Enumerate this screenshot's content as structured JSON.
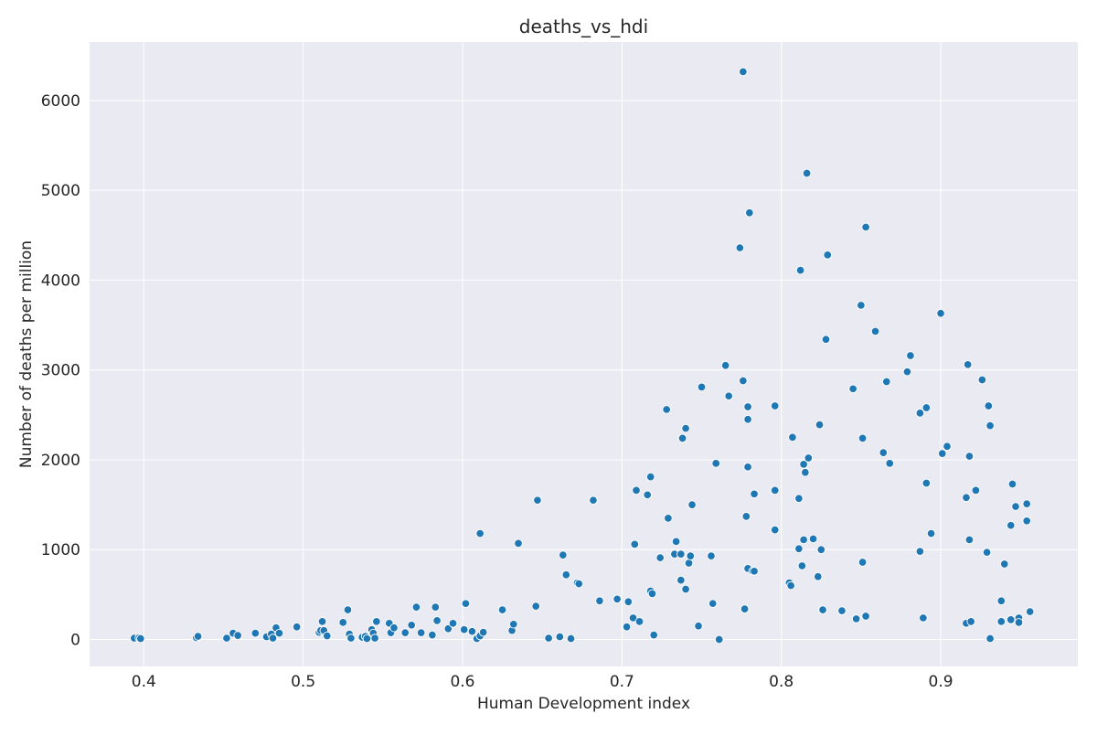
{
  "chart_data": {
    "type": "scatter",
    "title": "deaths_vs_hdi",
    "xlabel": "Human Development index",
    "ylabel": "Number of deaths per million",
    "xlim": [
      0.366,
      0.986
    ],
    "ylim": [
      -300,
      6650
    ],
    "xticks": [
      0.4,
      0.5,
      0.6,
      0.7,
      0.8,
      0.9
    ],
    "xtick_labels": [
      "0.4",
      "0.5",
      "0.6",
      "0.7",
      "0.8",
      "0.9"
    ],
    "yticks": [
      0,
      1000,
      2000,
      3000,
      4000,
      5000,
      6000
    ],
    "ytick_labels": [
      "0",
      "1000",
      "2000",
      "3000",
      "4000",
      "5000",
      "6000"
    ],
    "grid": true,
    "background": "#eaeaf2",
    "point_color": "#1f77b4",
    "series": [
      {
        "points": [
          [
            0.394,
            15
          ],
          [
            0.397,
            20
          ],
          [
            0.398,
            10
          ],
          [
            0.433,
            20
          ],
          [
            0.434,
            35
          ],
          [
            0.452,
            15
          ],
          [
            0.456,
            70
          ],
          [
            0.459,
            45
          ],
          [
            0.47,
            70
          ],
          [
            0.477,
            30
          ],
          [
            0.48,
            60
          ],
          [
            0.481,
            15
          ],
          [
            0.483,
            130
          ],
          [
            0.485,
            70
          ],
          [
            0.496,
            140
          ],
          [
            0.51,
            80
          ],
          [
            0.511,
            100
          ],
          [
            0.512,
            200
          ],
          [
            0.513,
            100
          ],
          [
            0.515,
            40
          ],
          [
            0.525,
            190
          ],
          [
            0.528,
            330
          ],
          [
            0.529,
            60
          ],
          [
            0.53,
            15
          ],
          [
            0.537,
            25
          ],
          [
            0.539,
            35
          ],
          [
            0.54,
            10
          ],
          [
            0.543,
            110
          ],
          [
            0.544,
            70
          ],
          [
            0.545,
            15
          ],
          [
            0.546,
            200
          ],
          [
            0.554,
            180
          ],
          [
            0.555,
            75
          ],
          [
            0.557,
            130
          ],
          [
            0.564,
            75
          ],
          [
            0.568,
            160
          ],
          [
            0.571,
            360
          ],
          [
            0.574,
            75
          ],
          [
            0.581,
            50
          ],
          [
            0.583,
            360
          ],
          [
            0.584,
            210
          ],
          [
            0.591,
            120
          ],
          [
            0.594,
            180
          ],
          [
            0.601,
            110
          ],
          [
            0.602,
            400
          ],
          [
            0.606,
            90
          ],
          [
            0.609,
            10
          ],
          [
            0.611,
            40
          ],
          [
            0.611,
            1180
          ],
          [
            0.613,
            80
          ],
          [
            0.625,
            330
          ],
          [
            0.631,
            100
          ],
          [
            0.632,
            170
          ],
          [
            0.635,
            1070
          ],
          [
            0.646,
            370
          ],
          [
            0.647,
            1550
          ],
          [
            0.654,
            15
          ],
          [
            0.661,
            30
          ],
          [
            0.663,
            940
          ],
          [
            0.665,
            720
          ],
          [
            0.668,
            10
          ],
          [
            0.672,
            630
          ],
          [
            0.673,
            620
          ],
          [
            0.682,
            1550
          ],
          [
            0.686,
            430
          ],
          [
            0.697,
            450
          ],
          [
            0.703,
            140
          ],
          [
            0.704,
            420
          ],
          [
            0.707,
            240
          ],
          [
            0.708,
            1060
          ],
          [
            0.709,
            1660
          ],
          [
            0.711,
            200
          ],
          [
            0.716,
            1610
          ],
          [
            0.718,
            1810
          ],
          [
            0.718,
            540
          ],
          [
            0.719,
            510
          ],
          [
            0.72,
            50
          ],
          [
            0.724,
            910
          ],
          [
            0.728,
            2560
          ],
          [
            0.729,
            1350
          ],
          [
            0.733,
            950
          ],
          [
            0.734,
            1090
          ],
          [
            0.737,
            950
          ],
          [
            0.737,
            660
          ],
          [
            0.738,
            2240
          ],
          [
            0.74,
            2350
          ],
          [
            0.74,
            560
          ],
          [
            0.742,
            850
          ],
          [
            0.743,
            930
          ],
          [
            0.744,
            1500
          ],
          [
            0.748,
            150
          ],
          [
            0.75,
            2810
          ],
          [
            0.756,
            930
          ],
          [
            0.757,
            400
          ],
          [
            0.759,
            1960
          ],
          [
            0.761,
            0
          ],
          [
            0.765,
            3050
          ],
          [
            0.767,
            2710
          ],
          [
            0.774,
            4360
          ],
          [
            0.776,
            6320
          ],
          [
            0.776,
            2880
          ],
          [
            0.777,
            340
          ],
          [
            0.778,
            1370
          ],
          [
            0.779,
            2590
          ],
          [
            0.779,
            2450
          ],
          [
            0.779,
            1920
          ],
          [
            0.779,
            790
          ],
          [
            0.78,
            4750
          ],
          [
            0.782,
            760
          ],
          [
            0.783,
            760
          ],
          [
            0.783,
            1620
          ],
          [
            0.796,
            2600
          ],
          [
            0.796,
            1660
          ],
          [
            0.796,
            1220
          ],
          [
            0.805,
            630
          ],
          [
            0.806,
            600
          ],
          [
            0.807,
            2250
          ],
          [
            0.811,
            1570
          ],
          [
            0.811,
            1010
          ],
          [
            0.812,
            4110
          ],
          [
            0.813,
            820
          ],
          [
            0.814,
            1950
          ],
          [
            0.814,
            1110
          ],
          [
            0.815,
            1860
          ],
          [
            0.816,
            5190
          ],
          [
            0.817,
            2020
          ],
          [
            0.82,
            1120
          ],
          [
            0.823,
            700
          ],
          [
            0.824,
            2390
          ],
          [
            0.825,
            1000
          ],
          [
            0.826,
            330
          ],
          [
            0.828,
            3340
          ],
          [
            0.829,
            4280
          ],
          [
            0.838,
            320
          ],
          [
            0.845,
            2790
          ],
          [
            0.847,
            230
          ],
          [
            0.85,
            3720
          ],
          [
            0.851,
            2240
          ],
          [
            0.851,
            860
          ],
          [
            0.853,
            4590
          ],
          [
            0.853,
            260
          ],
          [
            0.859,
            3430
          ],
          [
            0.864,
            2080
          ],
          [
            0.866,
            2870
          ],
          [
            0.868,
            1960
          ],
          [
            0.879,
            2980
          ],
          [
            0.881,
            3160
          ],
          [
            0.887,
            2520
          ],
          [
            0.887,
            980
          ],
          [
            0.889,
            240
          ],
          [
            0.891,
            2580
          ],
          [
            0.891,
            1740
          ],
          [
            0.894,
            1180
          ],
          [
            0.9,
            3630
          ],
          [
            0.901,
            2070
          ],
          [
            0.904,
            2150
          ],
          [
            0.916,
            180
          ],
          [
            0.916,
            1580
          ],
          [
            0.917,
            3060
          ],
          [
            0.918,
            2040
          ],
          [
            0.918,
            1110
          ],
          [
            0.919,
            200
          ],
          [
            0.922,
            1660
          ],
          [
            0.926,
            2890
          ],
          [
            0.929,
            970
          ],
          [
            0.93,
            2600
          ],
          [
            0.931,
            10
          ],
          [
            0.931,
            2380
          ],
          [
            0.938,
            430
          ],
          [
            0.938,
            200
          ],
          [
            0.94,
            840
          ],
          [
            0.944,
            1270
          ],
          [
            0.944,
            220
          ],
          [
            0.945,
            1730
          ],
          [
            0.947,
            1480
          ],
          [
            0.949,
            240
          ],
          [
            0.949,
            190
          ],
          [
            0.954,
            1510
          ],
          [
            0.954,
            1320
          ],
          [
            0.956,
            310
          ]
        ]
      }
    ]
  }
}
